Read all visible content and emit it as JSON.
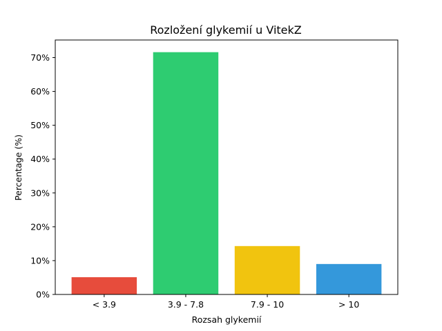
{
  "chart_data": {
    "type": "bar",
    "title": "Rozložení glykemií u  VitekZ",
    "xlabel": "Rozsah glykemií",
    "ylabel": "Percentage (%)",
    "categories": [
      "< 3.9",
      "3.9 - 7.8",
      "7.9 - 10",
      "> 10"
    ],
    "values": [
      5.1,
      71.6,
      14.3,
      9.0
    ],
    "colors": [
      "#e74c3c",
      "#2ecc71",
      "#f1c40f",
      "#3498db"
    ],
    "ylim": [
      0,
      75.2
    ],
    "yticks": [
      0,
      10,
      20,
      30,
      40,
      50,
      60,
      70
    ],
    "ytick_format": "percent",
    "grid": false,
    "legend": "none"
  }
}
